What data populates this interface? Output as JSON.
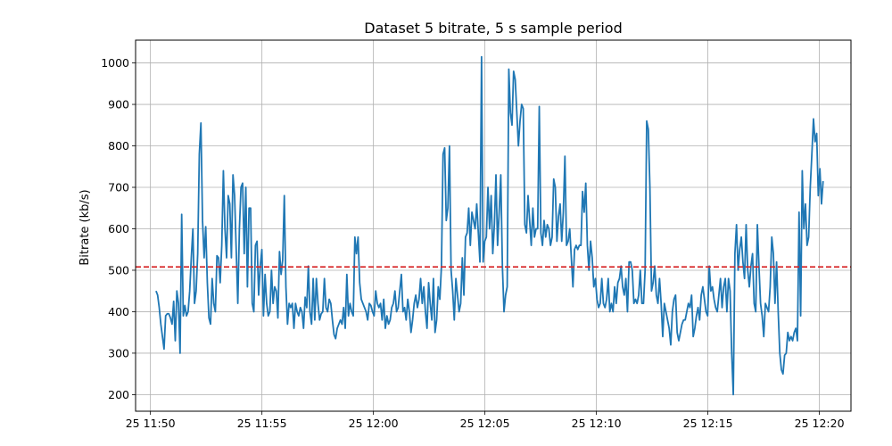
{
  "chart_data": {
    "type": "line",
    "title": "Dataset 5 bitrate, 5 s sample period",
    "xlabel": "",
    "ylabel": "Bitrate (kb/s)",
    "x_start": "25 11:50:15",
    "x_end": "25 12:20:10",
    "x_ticks": [
      "25 11:50",
      "25 11:55",
      "25 12:00",
      "25 12:05",
      "25 12:10",
      "25 12:15",
      "25 12:20"
    ],
    "y_ticks": [
      200,
      300,
      400,
      500,
      600,
      700,
      800,
      900,
      1000
    ],
    "xlim": [
      "25 11:49:20",
      "25 12:21:25"
    ],
    "ylim": [
      160,
      1055
    ],
    "grid": true,
    "series": [
      {
        "color": "#1f77b4",
        "values": [
          450,
          440,
          410,
          370,
          340,
          310,
          390,
          395,
          395,
          385,
          370,
          425,
          330,
          450,
          420,
          300,
          635,
          390,
          415,
          390,
          400,
          450,
          530,
          600,
          420,
          450,
          540,
          780,
          855,
          620,
          530,
          605,
          470,
          385,
          370,
          480,
          420,
          400,
          535,
          530,
          470,
          560,
          740,
          600,
          530,
          680,
          660,
          530,
          730,
          680,
          550,
          420,
          600,
          700,
          710,
          540,
          700,
          460,
          650,
          650,
          420,
          400,
          560,
          570,
          440,
          510,
          550,
          390,
          490,
          420,
          390,
          400,
          500,
          420,
          460,
          450,
          385,
          545,
          490,
          525,
          680,
          460,
          370,
          420,
          410,
          420,
          360,
          420,
          400,
          390,
          410,
          400,
          360,
          435,
          410,
          510,
          400,
          370,
          480,
          380,
          480,
          420,
          380,
          395,
          400,
          480,
          410,
          400,
          430,
          420,
          380,
          345,
          335,
          360,
          370,
          380,
          370,
          410,
          360,
          490,
          390,
          420,
          400,
          390,
          580,
          540,
          580,
          470,
          430,
          420,
          410,
          400,
          380,
          420,
          415,
          400,
          390,
          450,
          420,
          410,
          420,
          380,
          430,
          360,
          390,
          370,
          380,
          410,
          420,
          450,
          400,
          410,
          450,
          490,
          400,
          410,
          380,
          430,
          400,
          350,
          380,
          420,
          440,
          410,
          430,
          480,
          420,
          460,
          400,
          360,
          470,
          420,
          380,
          480,
          350,
          380,
          460,
          430,
          510,
          780,
          795,
          620,
          650,
          800,
          500,
          450,
          380,
          480,
          440,
          400,
          420,
          530,
          440,
          580,
          590,
          650,
          560,
          640,
          620,
          600,
          660,
          590,
          520,
          1015,
          520,
          570,
          580,
          700,
          600,
          680,
          540,
          610,
          730,
          560,
          640,
          730,
          510,
          400,
          440,
          460,
          985,
          880,
          850,
          980,
          960,
          880,
          800,
          860,
          900,
          890,
          610,
          590,
          680,
          620,
          560,
          650,
          580,
          600,
          600,
          895,
          590,
          560,
          620,
          580,
          610,
          600,
          560,
          580,
          720,
          700,
          570,
          630,
          660,
          570,
          640,
          775,
          560,
          570,
          600,
          530,
          460,
          550,
          560,
          550,
          560,
          560,
          690,
          640,
          710,
          560,
          500,
          570,
          530,
          460,
          480,
          430,
          410,
          420,
          480,
          420,
          410,
          430,
          480,
          400,
          420,
          400,
          460,
          420,
          470,
          480,
          510,
          460,
          440,
          480,
          400,
          520,
          520,
          500,
          420,
          430,
          420,
          440,
          500,
          420,
          420,
          500,
          860,
          840,
          700,
          450,
          470,
          510,
          440,
          420,
          480,
          420,
          340,
          420,
          400,
          380,
          360,
          320,
          400,
          430,
          440,
          350,
          330,
          350,
          370,
          380,
          380,
          400,
          420,
          410,
          440,
          340,
          360,
          390,
          410,
          380,
          440,
          460,
          430,
          400,
          390,
          510,
          450,
          460,
          430,
          410,
          400,
          440,
          480,
          410,
          460,
          480,
          400,
          480,
          450,
          300,
          200,
          540,
          610,
          500,
          550,
          580,
          520,
          480,
          610,
          500,
          460,
          510,
          540,
          420,
          400,
          610,
          510,
          420,
          390,
          340,
          420,
          410,
          400,
          460,
          580,
          540,
          420,
          520,
          400,
          300,
          260,
          250,
          295,
          300,
          350,
          330,
          340,
          330,
          350,
          360,
          330,
          640,
          390,
          740,
          600,
          660,
          560,
          580,
          700,
          780,
          865,
          810,
          830,
          680,
          745,
          660,
          715
        ]
      },
      {
        "color": "#d62728",
        "constant": 508
      }
    ]
  }
}
